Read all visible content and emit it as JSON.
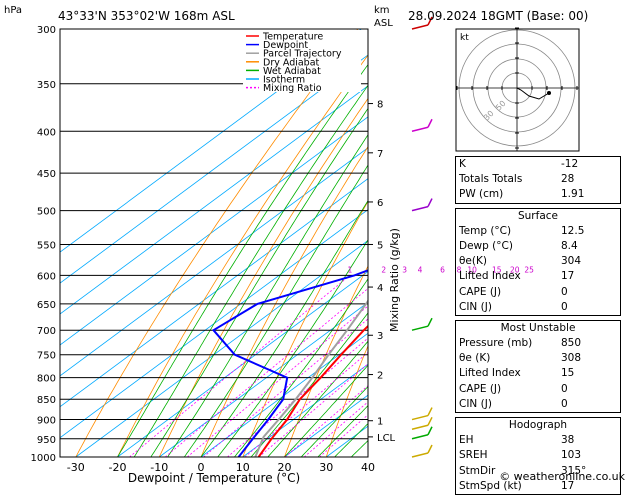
{
  "header": {
    "location": "43°33'N  353°02'W  168m  ASL",
    "hpa_label": "hPa",
    "km_label": "km",
    "asl_label": "ASL",
    "datetime": "28.09.2024  18GMT  (Base: 00)"
  },
  "chart_data": {
    "type": "skew-t log-p",
    "xlabel": "Dewpoint / Temperature (°C)",
    "ylabel_right": "Mixing Ratio (g/kg)",
    "x_ticks": [
      -30,
      -20,
      -10,
      0,
      10,
      20,
      30,
      40
    ],
    "pressure_levels": [
      300,
      350,
      400,
      450,
      500,
      550,
      600,
      650,
      700,
      750,
      800,
      850,
      900,
      950,
      1000
    ],
    "plim": [
      1000,
      300
    ],
    "km_ticks": [
      {
        "label": "8",
        "p": 370
      },
      {
        "label": "7",
        "p": 425
      },
      {
        "label": "6",
        "p": 488
      },
      {
        "label": "5",
        "p": 550
      },
      {
        "label": "4",
        "p": 620
      },
      {
        "label": "3",
        "p": 710
      },
      {
        "label": "2",
        "p": 793
      },
      {
        "label": "1",
        "p": 903
      },
      {
        "label": "LCL",
        "p": 945
      }
    ],
    "mixing_ratio_labels": [
      "1",
      "2",
      "3",
      "4",
      "6",
      "8",
      "10",
      "15",
      "20",
      "25"
    ],
    "mixing_ratio_values": [
      1,
      2,
      3,
      4,
      6,
      8,
      10,
      15,
      20,
      25
    ],
    "legend": [
      {
        "name": "Temperature",
        "color": "#ff0000",
        "dash": "none"
      },
      {
        "name": "Dewpoint",
        "color": "#0000ff",
        "dash": "none"
      },
      {
        "name": "Parcel Trajectory",
        "color": "#a0a0a0",
        "dash": "none"
      },
      {
        "name": "Dry Adiabat",
        "color": "#ff8c00",
        "dash": "none"
      },
      {
        "name": "Wet Adiabat",
        "color": "#00b000",
        "dash": "none"
      },
      {
        "name": "Isotherm",
        "color": "#00aaff",
        "dash": "none"
      },
      {
        "name": "Mixing Ratio",
        "color": "#ff00ff",
        "dash": "2,2"
      }
    ],
    "temperature": [
      {
        "p": 1000,
        "t": 13.8
      },
      {
        "p": 950,
        "t": 11.0
      },
      {
        "p": 900,
        "t": 8.5
      },
      {
        "p": 850,
        "t": 5.0
      },
      {
        "p": 800,
        "t": 3.0
      },
      {
        "p": 750,
        "t": 0.5
      },
      {
        "p": 700,
        "t": -2.0
      },
      {
        "p": 650,
        "t": -4.0
      },
      {
        "p": 600,
        "t": -6.5
      },
      {
        "p": 550,
        "t": -10.0
      },
      {
        "p": 500,
        "t": -14.0
      },
      {
        "p": 450,
        "t": -19.0
      },
      {
        "p": 400,
        "t": -25.0
      },
      {
        "p": 350,
        "t": -32.0
      },
      {
        "p": 300,
        "t": -41.0
      }
    ],
    "dewpoint": [
      {
        "p": 1000,
        "t": 9.0
      },
      {
        "p": 950,
        "t": 6.5
      },
      {
        "p": 900,
        "t": 4.0
      },
      {
        "p": 850,
        "t": 1.0
      },
      {
        "p": 800,
        "t": -5.0
      },
      {
        "p": 750,
        "t": -25.0
      },
      {
        "p": 700,
        "t": -38.0
      },
      {
        "p": 650,
        "t": -36.0
      },
      {
        "p": 600,
        "t": -22.0
      },
      {
        "p": 550,
        "t": -12.0
      },
      {
        "p": 500,
        "t": -18.0
      },
      {
        "p": 450,
        "t": -23.0
      },
      {
        "p": 400,
        "t": -30.0
      },
      {
        "p": 350,
        "t": -38.0
      },
      {
        "p": 300,
        "t": -47.0
      }
    ],
    "parcel": [
      {
        "p": 1000,
        "t": 13.0
      },
      {
        "p": 945,
        "t": 8.5
      },
      {
        "p": 900,
        "t": 6.5
      },
      {
        "p": 850,
        "t": 4.0
      },
      {
        "p": 800,
        "t": 1.0
      },
      {
        "p": 750,
        "t": -2.5
      },
      {
        "p": 700,
        "t": -6.0
      },
      {
        "p": 650,
        "t": -10.0
      },
      {
        "p": 600,
        "t": -14.5
      },
      {
        "p": 550,
        "t": -19.5
      },
      {
        "p": 500,
        "t": -25.5
      },
      {
        "p": 450,
        "t": -32.0
      },
      {
        "p": 400,
        "t": -40.0
      },
      {
        "p": 350,
        "t": -48.5
      },
      {
        "p": 300,
        "t": -58.0
      }
    ],
    "wind_barbs": [
      {
        "p": 300,
        "color": "#cc0000"
      },
      {
        "p": 400,
        "color": "#cc00cc"
      },
      {
        "p": 500,
        "color": "#9900cc"
      },
      {
        "p": 700,
        "color": "#00aa00"
      },
      {
        "p": 900,
        "color": "#ccaa00"
      },
      {
        "p": 925,
        "color": "#ccaa00"
      },
      {
        "p": 950,
        "color": "#00aa00"
      },
      {
        "p": 1000,
        "color": "#ccaa00"
      }
    ],
    "hodograph": {
      "label": "kt",
      "rings_kt": [
        10,
        20,
        30,
        40
      ],
      "ring_labels": [
        "30",
        "50"
      ]
    }
  },
  "indices": {
    "rows": [
      {
        "label": "K",
        "value": "-12"
      },
      {
        "label": "Totals Totals",
        "value": "28"
      },
      {
        "label": "PW (cm)",
        "value": "1.91"
      }
    ]
  },
  "surface": {
    "title": "Surface",
    "rows": [
      {
        "label": "Temp (°C)",
        "value": "12.5"
      },
      {
        "label": "Dewp (°C)",
        "value": "8.4"
      },
      {
        "label": "θe(K)",
        "value": "304"
      },
      {
        "label": "Lifted Index",
        "value": "17"
      },
      {
        "label": "CAPE (J)",
        "value": "0"
      },
      {
        "label": "CIN (J)",
        "value": "0"
      }
    ]
  },
  "most_unstable": {
    "title": "Most Unstable",
    "rows": [
      {
        "label": "Pressure (mb)",
        "value": "850"
      },
      {
        "label": "θe (K)",
        "value": "308"
      },
      {
        "label": "Lifted Index",
        "value": "15"
      },
      {
        "label": "CAPE (J)",
        "value": "0"
      },
      {
        "label": "CIN (J)",
        "value": "0"
      }
    ]
  },
  "hodograph_table": {
    "title": "Hodograph",
    "rows": [
      {
        "label": "EH",
        "value": "38"
      },
      {
        "label": "SREH",
        "value": "103"
      },
      {
        "label": "StmDir",
        "value": "315°"
      },
      {
        "label": "StmSpd (kt)",
        "value": "17"
      }
    ]
  },
  "footer": {
    "copyright": "© weatheronline.co.uk"
  }
}
